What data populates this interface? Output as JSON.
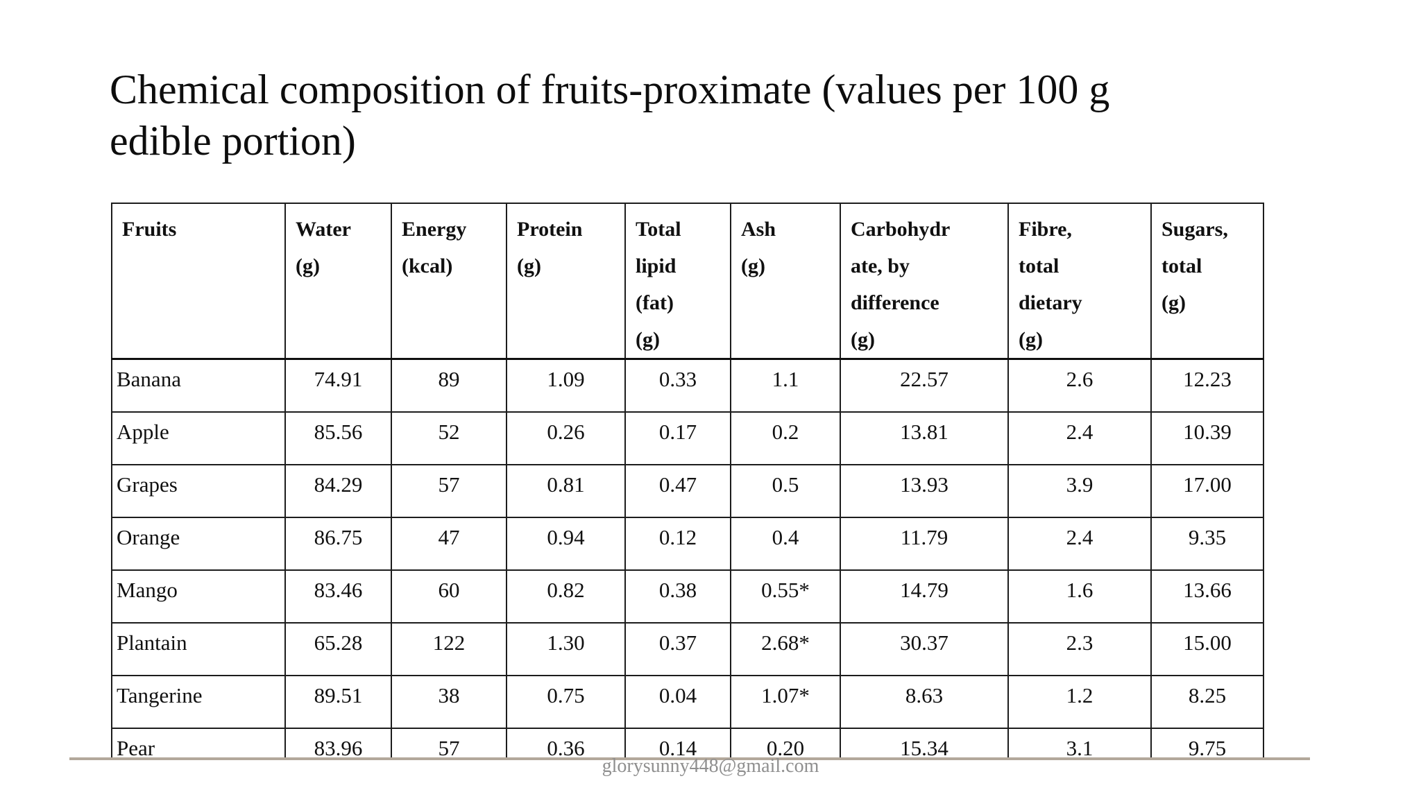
{
  "title": {
    "line1": "Chemical composition of fruits-proximate (values per 100 g",
    "line2": "edible portion)"
  },
  "table": {
    "header_lines": [
      [
        "Fruits"
      ],
      [
        "Water",
        "(g)"
      ],
      [
        "Energy",
        "(kcal)"
      ],
      [
        "Protein",
        "(g)"
      ],
      [
        "Total",
        "lipid",
        "(fat)",
        "(g)"
      ],
      [
        "Ash",
        "(g)"
      ],
      [
        "Carbohydr",
        "ate, by",
        "difference",
        "(g)"
      ],
      [
        "Fibre,",
        "total",
        "dietary",
        "(g)"
      ],
      [
        "Sugars,",
        "total",
        "(g)"
      ]
    ],
    "rows": [
      {
        "fruit": "Banana",
        "values": [
          "74.91",
          "89",
          "1.09",
          "0.33",
          "1.1",
          "22.57",
          "2.6",
          "12.23"
        ]
      },
      {
        "fruit": "Apple",
        "values": [
          "85.56",
          "52",
          "0.26",
          "0.17",
          "0.2",
          "13.81",
          "2.4",
          "10.39"
        ]
      },
      {
        "fruit": "Grapes",
        "values": [
          "84.29",
          "57",
          "0.81",
          "0.47",
          "0.5",
          "13.93",
          "3.9",
          "17.00"
        ]
      },
      {
        "fruit": "Orange",
        "values": [
          "86.75",
          "47",
          "0.94",
          "0.12",
          "0.4",
          "11.79",
          "2.4",
          "9.35"
        ]
      },
      {
        "fruit": "Mango",
        "values": [
          "83.46",
          "60",
          "0.82",
          "0.38",
          "0.55*",
          "14.79",
          "1.6",
          "13.66"
        ]
      },
      {
        "fruit": "Plantain",
        "values": [
          "65.28",
          "122",
          "1.30",
          "0.37",
          "2.68*",
          "30.37",
          "2.3",
          "15.00"
        ]
      },
      {
        "fruit": "Tangerine",
        "values": [
          "89.51",
          "38",
          "0.75",
          "0.04",
          "1.07*",
          "8.63",
          "1.2",
          "8.25"
        ]
      },
      {
        "fruit": "Pear",
        "values": [
          "83.96",
          "57",
          "0.36",
          "0.14",
          "0.20",
          "15.34",
          "3.1",
          "9.75"
        ]
      }
    ]
  },
  "footer": {
    "watermark": "glorysunny448@gmail.com"
  },
  "colors": {
    "background": "#ffffff",
    "text": "#101010",
    "table_border": "#1c1c1c",
    "footer_line": "#b3a89b",
    "watermark_text": "#8f8f8f"
  }
}
